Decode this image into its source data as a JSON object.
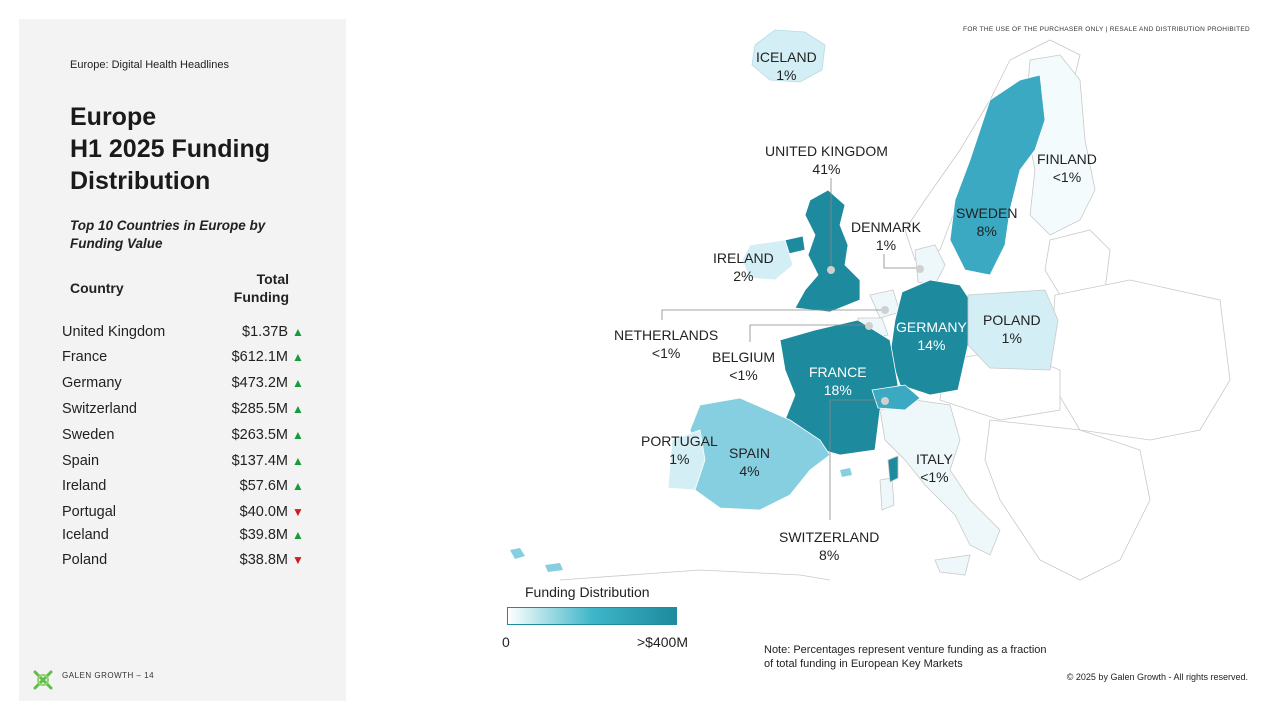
{
  "header": {
    "eyebrow": "Europe: Digital Health Headlines",
    "title_line1": "Europe",
    "title_line2": "H1 2025 Funding",
    "title_line3": "Distribution",
    "subtitle": "Top 10 Countries in Europe by Funding Value"
  },
  "table": {
    "col_country": "Country",
    "col_total_line1": "Total",
    "col_total_line2": "Funding",
    "rows": [
      {
        "country": "United Kingdom",
        "value": "$1.37B",
        "trend": "up"
      },
      {
        "country": "France",
        "value": "$612.1M",
        "trend": "up"
      },
      {
        "country": "Germany",
        "value": "$473.2M",
        "trend": "up"
      },
      {
        "country": "Switzerland",
        "value": "$285.5M",
        "trend": "up"
      },
      {
        "country": "Sweden",
        "value": "$263.5M",
        "trend": "up"
      },
      {
        "country": "Spain",
        "value": "$137.4M",
        "trend": "up"
      },
      {
        "country": "Ireland",
        "value": "$57.6M",
        "trend": "up"
      },
      {
        "country": "Portugal",
        "value": "$40.0M",
        "trend": "down"
      },
      {
        "country": "Iceland",
        "value": "$39.8M",
        "trend": "up"
      },
      {
        "country": "Poland",
        "value": "$38.8M",
        "trend": "down"
      }
    ]
  },
  "map": {
    "disclaimer": "FOR THE USE OF THE PURCHASER ONLY | RESALE AND DISTRIBUTION PROHIBITED",
    "labels": {
      "iceland": {
        "name": "ICELAND",
        "pct": "1%"
      },
      "uk": {
        "name": "UNITED KINGDOM",
        "pct": "41%"
      },
      "finland": {
        "name": "FINLAND",
        "pct": "<1%"
      },
      "denmark": {
        "name": "DENMARK",
        "pct": "1%"
      },
      "sweden": {
        "name": "SWEDEN",
        "pct": "8%"
      },
      "ireland": {
        "name": "IRELAND",
        "pct": "2%"
      },
      "netherlands": {
        "name": "NETHERLANDS",
        "pct": "<1%"
      },
      "germany": {
        "name": "GERMANY",
        "pct": "14%"
      },
      "poland": {
        "name": "POLAND",
        "pct": "1%"
      },
      "belgium": {
        "name": "BELGIUM",
        "pct": "<1%"
      },
      "france": {
        "name": "FRANCE",
        "pct": "18%"
      },
      "portugal": {
        "name": "PORTUGAL",
        "pct": "1%"
      },
      "spain": {
        "name": "SPAIN",
        "pct": "4%"
      },
      "italy": {
        "name": "ITALY",
        "pct": "<1%"
      },
      "switzerland": {
        "name": "SWITZERLAND",
        "pct": "8%"
      }
    },
    "colors": {
      "high": "#1e8a9e",
      "mid": "#3aa9c1",
      "light": "#86cfe0",
      "pale": "#d3eef4",
      "faint": "#eef8fb"
    }
  },
  "legend": {
    "title": "Funding Distribution",
    "min": "0",
    "max": ">$400M"
  },
  "note": {
    "line1": "Note: Percentages represent venture funding as a fraction",
    "line2": "of total funding in European Key Markets"
  },
  "footer": {
    "brand": "GALEN GROWTH – 14",
    "copyright": "© 2025 by Galen Growth  - All rights reserved."
  }
}
